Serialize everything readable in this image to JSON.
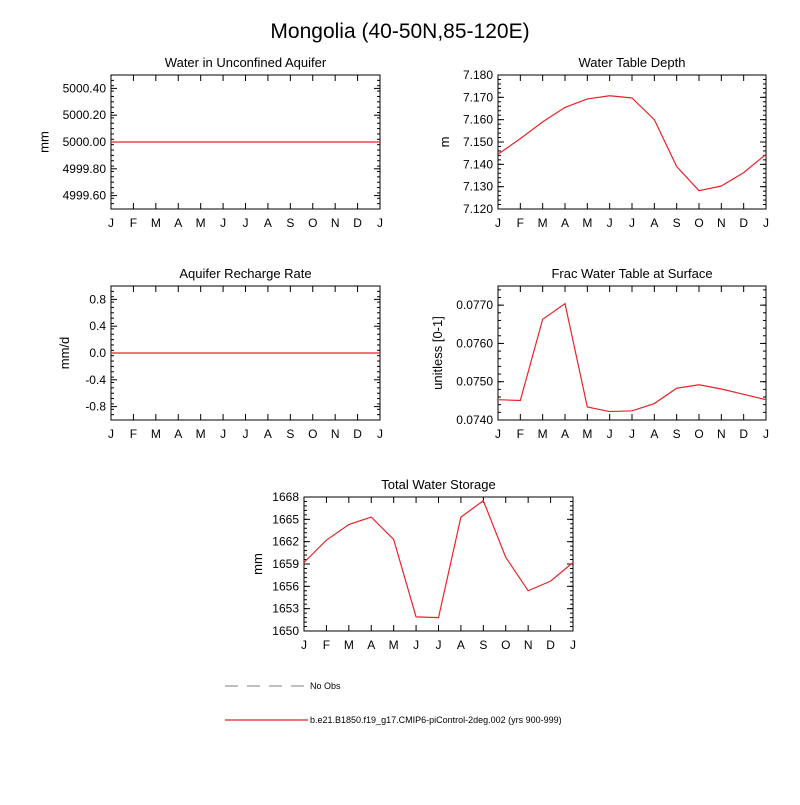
{
  "figure": {
    "title": "Mongolia (40-50N,85-120E)"
  },
  "legend": {
    "entries": [
      {
        "label": "No Obs",
        "color": "#999999",
        "style": "dashed"
      },
      {
        "label": "b.e21.B1850.f19_g17.CMIP6-piControl-2deg.002 (yrs 900-999)",
        "color": "#e8232a",
        "style": "solid"
      }
    ]
  },
  "chart_data": [
    {
      "type": "line",
      "title": "Water in Unconfined Aquifer",
      "ylabel": "mm",
      "xlabel": "",
      "x": [
        "J",
        "F",
        "M",
        "A",
        "M",
        "J",
        "J",
        "A",
        "S",
        "O",
        "N",
        "D",
        "J"
      ],
      "ylim": [
        4999.5,
        5000.5
      ],
      "yticks": [
        4999.6,
        4999.8,
        5000.0,
        5000.2,
        5000.4
      ],
      "ytick_labels": [
        "4999.60",
        "4999.80",
        "5000.00",
        "5000.20",
        "5000.40"
      ],
      "series": [
        {
          "color": "#e8232a",
          "values": [
            5000,
            5000,
            5000,
            5000,
            5000,
            5000,
            5000,
            5000,
            5000,
            5000,
            5000,
            5000,
            5000
          ]
        }
      ]
    },
    {
      "type": "line",
      "title": "Water Table Depth",
      "ylabel": "m",
      "xlabel": "",
      "x": [
        "J",
        "F",
        "M",
        "A",
        "M",
        "J",
        "J",
        "A",
        "S",
        "O",
        "N",
        "D",
        "J"
      ],
      "ylim": [
        7.12,
        7.18
      ],
      "yticks": [
        7.12,
        7.13,
        7.14,
        7.15,
        7.16,
        7.17,
        7.18
      ],
      "ytick_labels": [
        "7.120",
        "7.130",
        "7.140",
        "7.150",
        "7.160",
        "7.170",
        "7.180"
      ],
      "series": [
        {
          "color": "#e8232a",
          "values": [
            7.1445,
            7.1515,
            7.159,
            7.1655,
            7.1693,
            7.1707,
            7.1697,
            7.16,
            7.139,
            7.1282,
            7.1303,
            7.1363,
            7.1445
          ]
        }
      ]
    },
    {
      "type": "line",
      "title": "Aquifer Recharge Rate",
      "ylabel": "mm/d",
      "xlabel": "",
      "x": [
        "J",
        "F",
        "M",
        "A",
        "M",
        "J",
        "J",
        "A",
        "S",
        "O",
        "N",
        "D",
        "J"
      ],
      "ylim": [
        -1,
        1
      ],
      "yticks": [
        -0.8,
        -0.4,
        0.0,
        0.4,
        0.8
      ],
      "ytick_labels": [
        "-0.8",
        "-0.4",
        "0.0",
        "0.4",
        "0.8"
      ],
      "series": [
        {
          "color": "#e8232a",
          "values": [
            0,
            0,
            0,
            0,
            0,
            0,
            0,
            0,
            0,
            0,
            0,
            0,
            0
          ]
        }
      ]
    },
    {
      "type": "line",
      "title": "Frac Water Table at Surface",
      "ylabel": "unitless [0-1]",
      "xlabel": "",
      "x": [
        "J",
        "F",
        "M",
        "A",
        "M",
        "J",
        "J",
        "A",
        "S",
        "O",
        "N",
        "D",
        "J"
      ],
      "ylim": [
        0.074,
        0.0775
      ],
      "yticks": [
        0.074,
        0.075,
        0.076,
        0.077
      ],
      "ytick_labels": [
        "0.0740",
        "0.0750",
        "0.0760",
        "0.0770"
      ],
      "series": [
        {
          "color": "#e8232a",
          "values": [
            0.07453,
            0.07451,
            0.07663,
            0.07704,
            0.07434,
            0.07422,
            0.07424,
            0.07443,
            0.07483,
            0.07492,
            0.07481,
            0.07467,
            0.07453
          ]
        }
      ]
    },
    {
      "type": "line",
      "title": "Total Water Storage",
      "ylabel": "mm",
      "xlabel": "",
      "x": [
        "J",
        "F",
        "M",
        "A",
        "M",
        "J",
        "J",
        "A",
        "S",
        "O",
        "N",
        "D",
        "J"
      ],
      "ylim": [
        1650,
        1668
      ],
      "yticks": [
        1650,
        1653,
        1656,
        1659,
        1662,
        1665,
        1668
      ],
      "ytick_labels": [
        "1650",
        "1653",
        "1656",
        "1659",
        "1662",
        "1665",
        "1668"
      ],
      "series": [
        {
          "color": "#e8232a",
          "values": [
            1659.2,
            1662.2,
            1664.3,
            1665.3,
            1662.3,
            1651.9,
            1651.8,
            1665.3,
            1667.5,
            1659.9,
            1655.4,
            1656.7,
            1659.2
          ]
        }
      ]
    }
  ]
}
